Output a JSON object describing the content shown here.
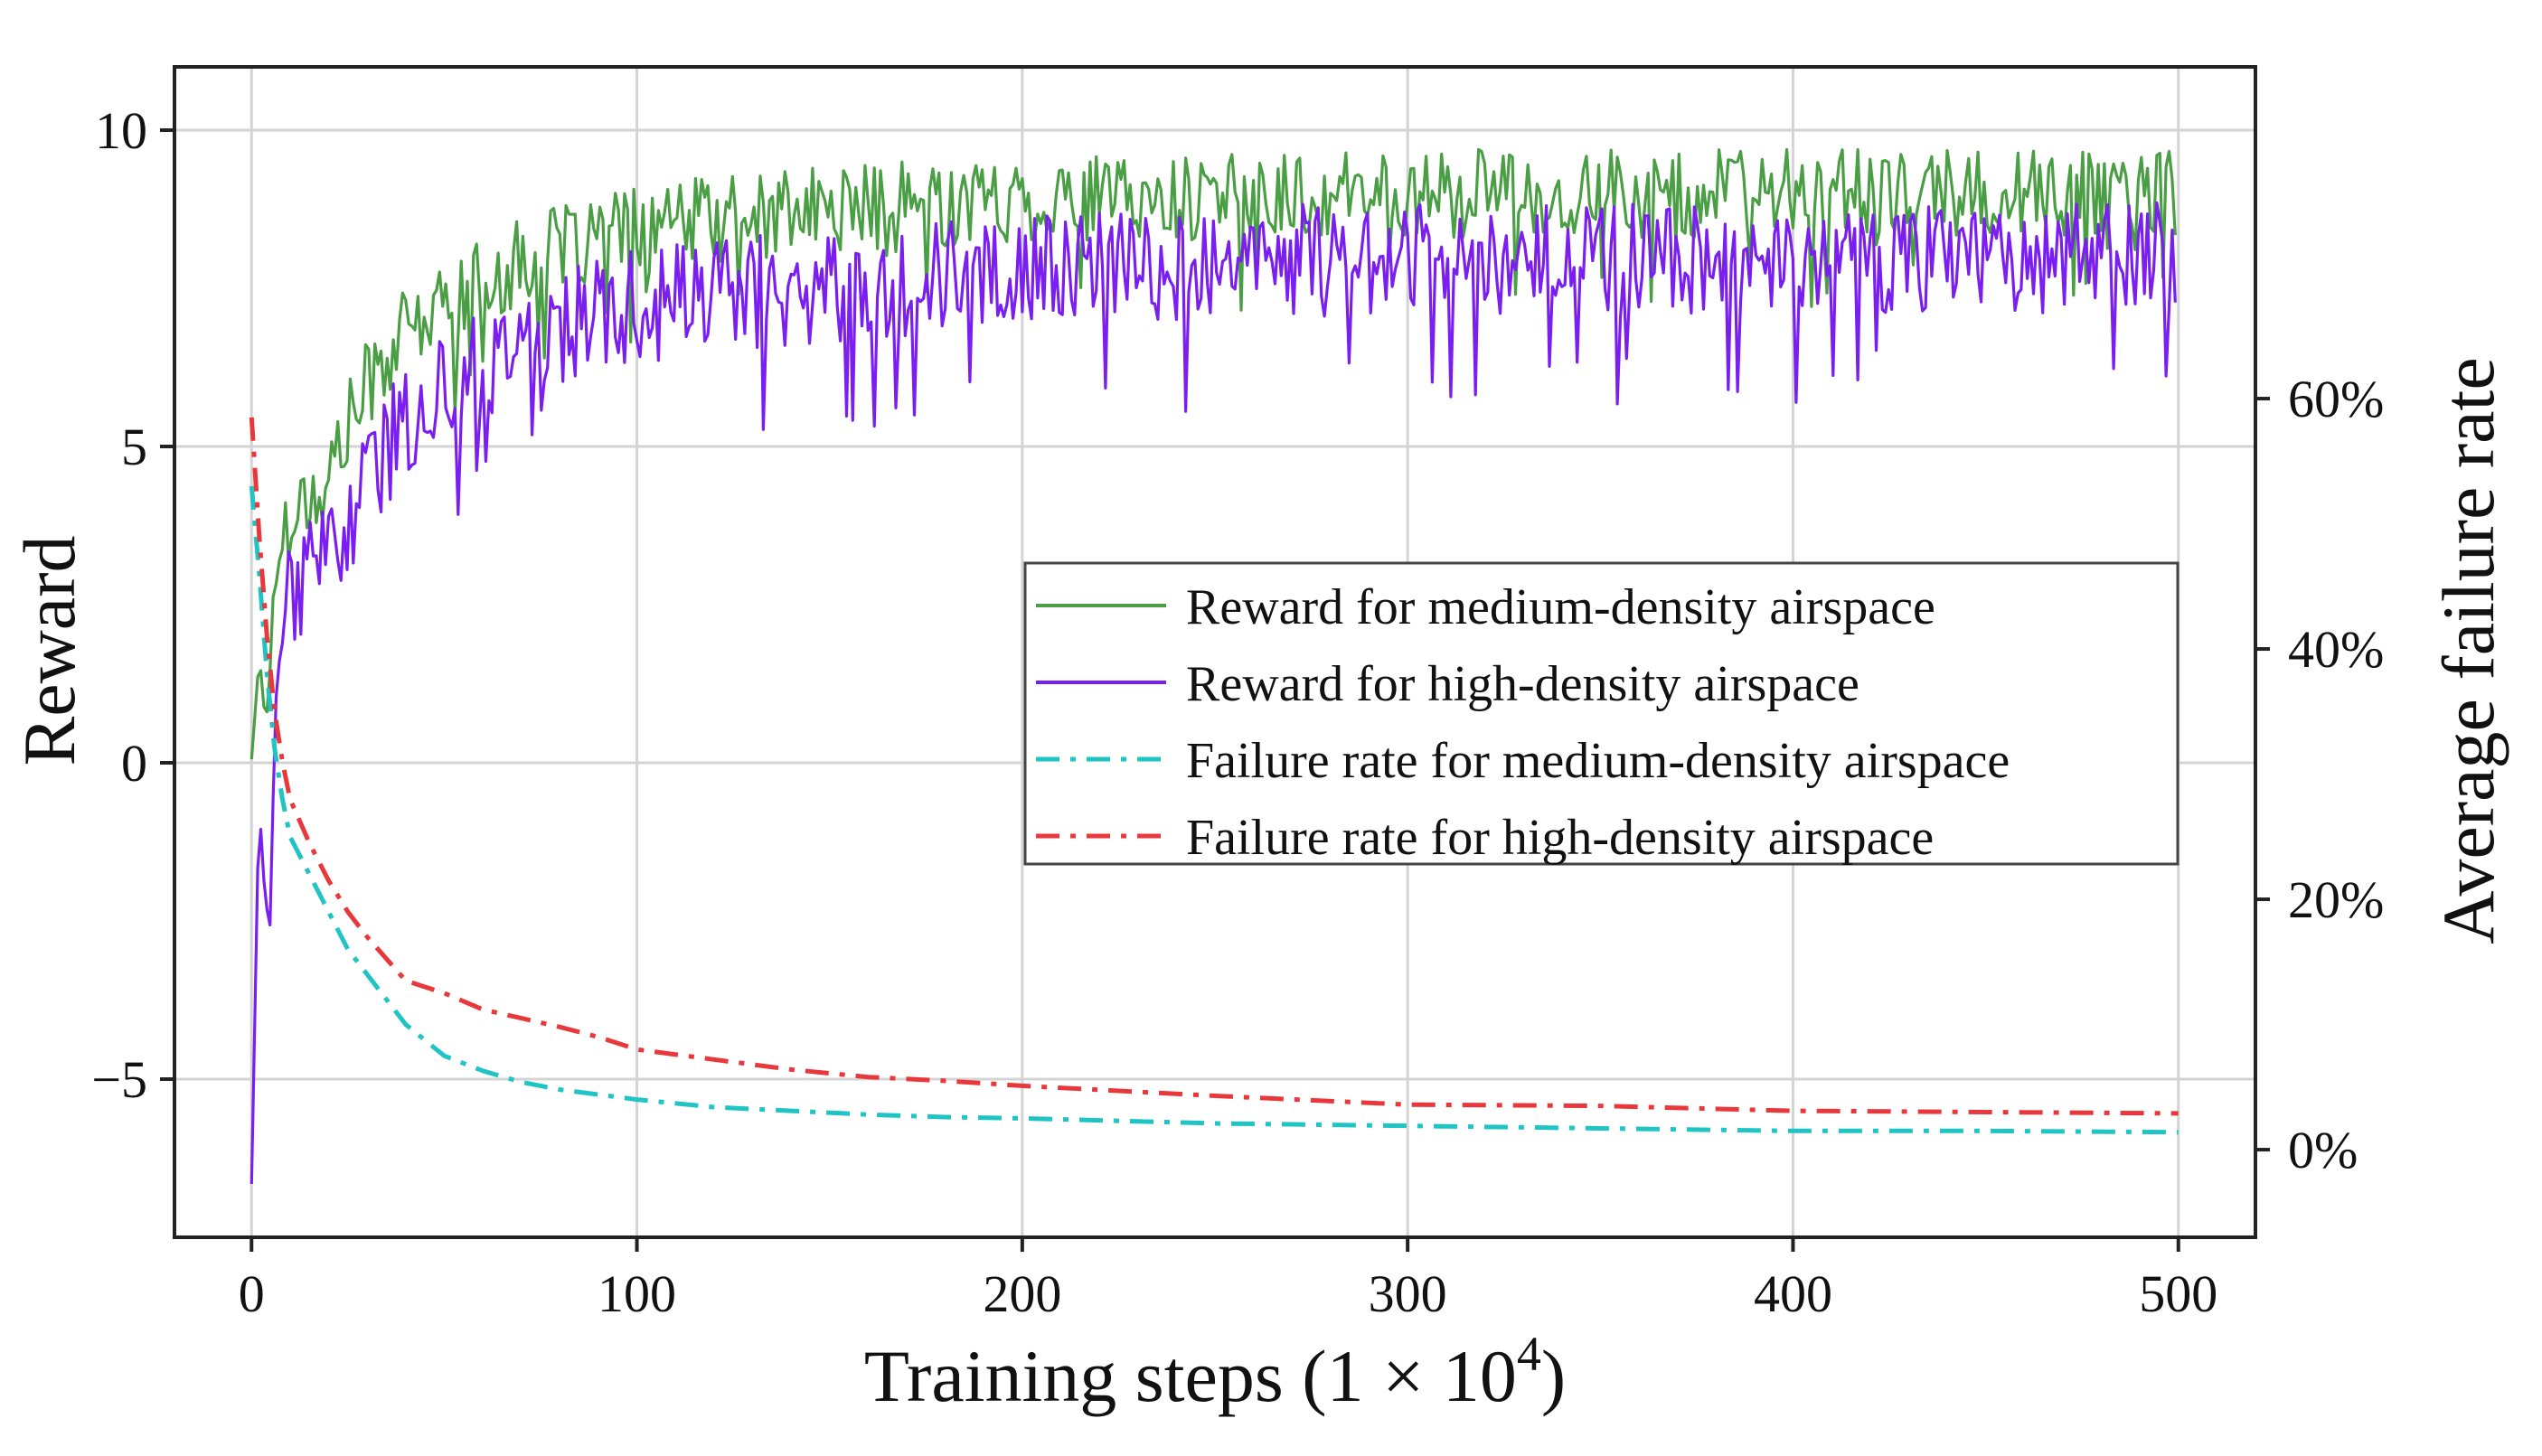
{
  "chart_data": {
    "type": "line",
    "xlabel": "Training steps (1 × 10",
    "xlabel_exponent": "4",
    "xlabel_suffix": ")",
    "ylabel": "Reward",
    "y2label": "Average failure rate",
    "xlim": [
      -20,
      520
    ],
    "ylim": [
      -7.5,
      11
    ],
    "y2lim": [
      -0.07,
      0.865
    ],
    "grid": true,
    "legend_position": "center-right",
    "x_ticks": [
      0,
      100,
      200,
      300,
      400,
      500
    ],
    "x_tick_labels": [
      "0",
      "100",
      "200",
      "300",
      "400",
      "500"
    ],
    "y_ticks": [
      -5,
      0,
      5,
      10
    ],
    "y_tick_labels": [
      "−5",
      "0",
      "5",
      "10"
    ],
    "y2_ticks": [
      0,
      0.2,
      0.4,
      0.6
    ],
    "y2_tick_labels": [
      "0%",
      "20%",
      "40%",
      "60%"
    ],
    "series": [
      {
        "name": "Reward for medium-density airspace",
        "axis": "left",
        "color": "#4a9e44",
        "style": "solid",
        "x": [
          0,
          2,
          4,
          6,
          8,
          10,
          15,
          20,
          25,
          30,
          40,
          50,
          60,
          70,
          80,
          90,
          100,
          120,
          140,
          160,
          180,
          200,
          250,
          300,
          350,
          400,
          450,
          500
        ],
        "y": [
          0.2,
          1.5,
          0.8,
          2.8,
          3.5,
          4.0,
          4.2,
          4.6,
          5.3,
          6.0,
          6.8,
          7.2,
          7.6,
          7.9,
          8.1,
          8.3,
          8.4,
          8.6,
          8.7,
          8.8,
          8.85,
          8.9,
          8.95,
          9.0,
          9.0,
          9.0,
          9.0,
          9.0
        ],
        "noise": 0.7
      },
      {
        "name": "Reward for high-density airspace",
        "axis": "left",
        "color": "#7a1ff0",
        "style": "solid",
        "x": [
          0,
          1,
          2,
          3,
          4,
          5,
          6,
          8,
          10,
          15,
          20,
          25,
          30,
          40,
          50,
          60,
          70,
          80,
          90,
          100,
          120,
          140,
          160,
          180,
          200,
          250,
          300,
          350,
          400,
          450,
          500
        ],
        "y": [
          -6.5,
          -3.0,
          -0.2,
          -1.8,
          -2.2,
          -3.0,
          0.5,
          2.2,
          2.8,
          2.9,
          3.3,
          3.8,
          4.5,
          5.4,
          5.9,
          6.3,
          6.6,
          6.9,
          7.1,
          7.2,
          7.4,
          7.5,
          7.6,
          7.7,
          7.8,
          7.9,
          8.0,
          8.0,
          8.0,
          8.0,
          8.0
        ],
        "noise": 0.9
      },
      {
        "name": "Failure rate for medium-density airspace",
        "axis": "right",
        "color": "#20c4c4",
        "style": "dash-dot",
        "x": [
          0,
          2,
          4,
          6,
          8,
          10,
          15,
          20,
          25,
          30,
          40,
          50,
          60,
          70,
          80,
          90,
          100,
          120,
          140,
          160,
          180,
          200,
          250,
          300,
          350,
          400,
          450,
          500
        ],
        "y": [
          0.53,
          0.46,
          0.38,
          0.32,
          0.28,
          0.25,
          0.22,
          0.19,
          0.16,
          0.14,
          0.1,
          0.075,
          0.063,
          0.054,
          0.048,
          0.044,
          0.04,
          0.034,
          0.031,
          0.028,
          0.026,
          0.025,
          0.021,
          0.019,
          0.017,
          0.015,
          0.015,
          0.014
        ]
      },
      {
        "name": "Failure rate for high-density airspace",
        "axis": "right",
        "color": "#e8383b",
        "style": "dash-dot",
        "x": [
          0,
          2,
          4,
          6,
          8,
          10,
          15,
          20,
          25,
          30,
          40,
          50,
          60,
          70,
          80,
          90,
          100,
          120,
          140,
          160,
          180,
          200,
          250,
          300,
          350,
          400,
          450,
          500
        ],
        "y": [
          0.585,
          0.49,
          0.41,
          0.35,
          0.31,
          0.28,
          0.245,
          0.215,
          0.19,
          0.17,
          0.135,
          0.125,
          0.112,
          0.105,
          0.098,
          0.09,
          0.08,
          0.072,
          0.064,
          0.058,
          0.055,
          0.051,
          0.043,
          0.036,
          0.035,
          0.031,
          0.03,
          0.029
        ]
      }
    ]
  }
}
